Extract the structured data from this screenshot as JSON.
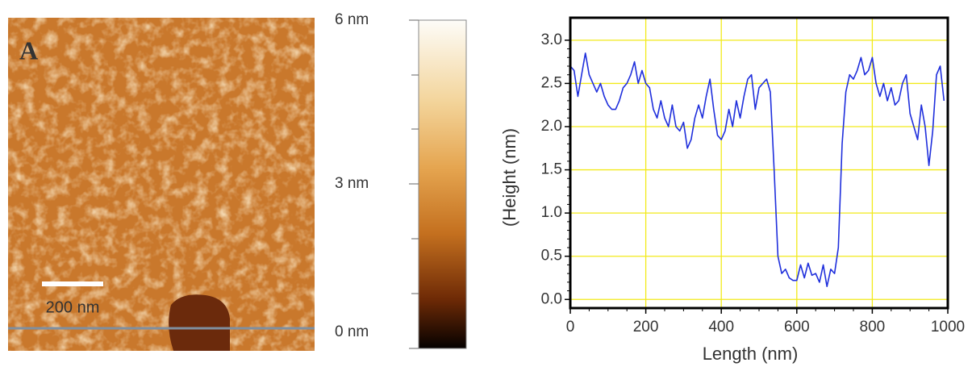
{
  "image": {
    "label": "A",
    "scale_bar": "200 nm"
  },
  "colorbar": {
    "labels": [
      "6 nm",
      "3 nm",
      "0 nm"
    ]
  },
  "chart_data": {
    "type": "line",
    "x_label": "Length (nm)",
    "y_label": "(Height (nm)",
    "xlim": [
      0,
      1000
    ],
    "ylim": [
      -0.1,
      3.26
    ],
    "xticks": [
      0,
      200,
      400,
      600,
      800,
      1000
    ],
    "yticks": [
      {
        "value": 0,
        "label": "0.0"
      },
      {
        "value": 0.5,
        "label": "0.5"
      },
      {
        "value": 1,
        "label": "1.0"
      },
      {
        "value": 1.5,
        "label": "1.5"
      },
      {
        "value": 2,
        "label": "2.0"
      },
      {
        "value": 2.5,
        "label": "2.5"
      },
      {
        "value": 3,
        "label": "3.0"
      }
    ],
    "grid": true,
    "grid_color": "#f2ea1a",
    "series": [
      {
        "color": "#1f2fdc",
        "x": [
          0,
          10,
          20,
          30,
          40,
          50,
          60,
          70,
          80,
          90,
          100,
          110,
          120,
          130,
          140,
          150,
          160,
          170,
          180,
          190,
          200,
          210,
          220,
          230,
          240,
          250,
          260,
          270,
          280,
          290,
          300,
          310,
          320,
          330,
          340,
          350,
          360,
          370,
          380,
          390,
          400,
          410,
          420,
          430,
          440,
          450,
          460,
          470,
          480,
          490,
          500,
          510,
          520,
          530,
          540,
          550,
          560,
          570,
          580,
          590,
          600,
          610,
          620,
          630,
          640,
          650,
          660,
          670,
          680,
          690,
          700,
          710,
          720,
          730,
          740,
          750,
          760,
          770,
          780,
          790,
          800,
          810,
          820,
          830,
          840,
          850,
          860,
          870,
          880,
          890,
          900,
          910,
          920,
          930,
          940,
          950,
          960,
          970,
          980,
          990
        ],
        "values": [
          2.7,
          2.65,
          2.35,
          2.6,
          2.85,
          2.6,
          2.5,
          2.4,
          2.5,
          2.35,
          2.25,
          2.2,
          2.2,
          2.3,
          2.45,
          2.5,
          2.6,
          2.75,
          2.5,
          2.65,
          2.5,
          2.45,
          2.2,
          2.1,
          2.3,
          2.1,
          2.0,
          2.25,
          2.0,
          1.95,
          2.05,
          1.75,
          1.85,
          2.1,
          2.25,
          2.1,
          2.35,
          2.55,
          2.2,
          1.9,
          1.85,
          1.95,
          2.2,
          2.0,
          2.3,
          2.1,
          2.35,
          2.55,
          2.6,
          2.2,
          2.45,
          2.5,
          2.55,
          2.4,
          1.5,
          0.5,
          0.3,
          0.35,
          0.25,
          0.22,
          0.22,
          0.4,
          0.25,
          0.42,
          0.28,
          0.3,
          0.2,
          0.4,
          0.15,
          0.35,
          0.3,
          0.6,
          1.8,
          2.4,
          2.6,
          2.55,
          2.65,
          2.8,
          2.6,
          2.65,
          2.8,
          2.5,
          2.35,
          2.5,
          2.3,
          2.45,
          2.25,
          2.3,
          2.5,
          2.6,
          2.15,
          2.0,
          1.85,
          2.25,
          2.0,
          1.55,
          1.95,
          2.6,
          2.7,
          2.3
        ]
      }
    ]
  }
}
